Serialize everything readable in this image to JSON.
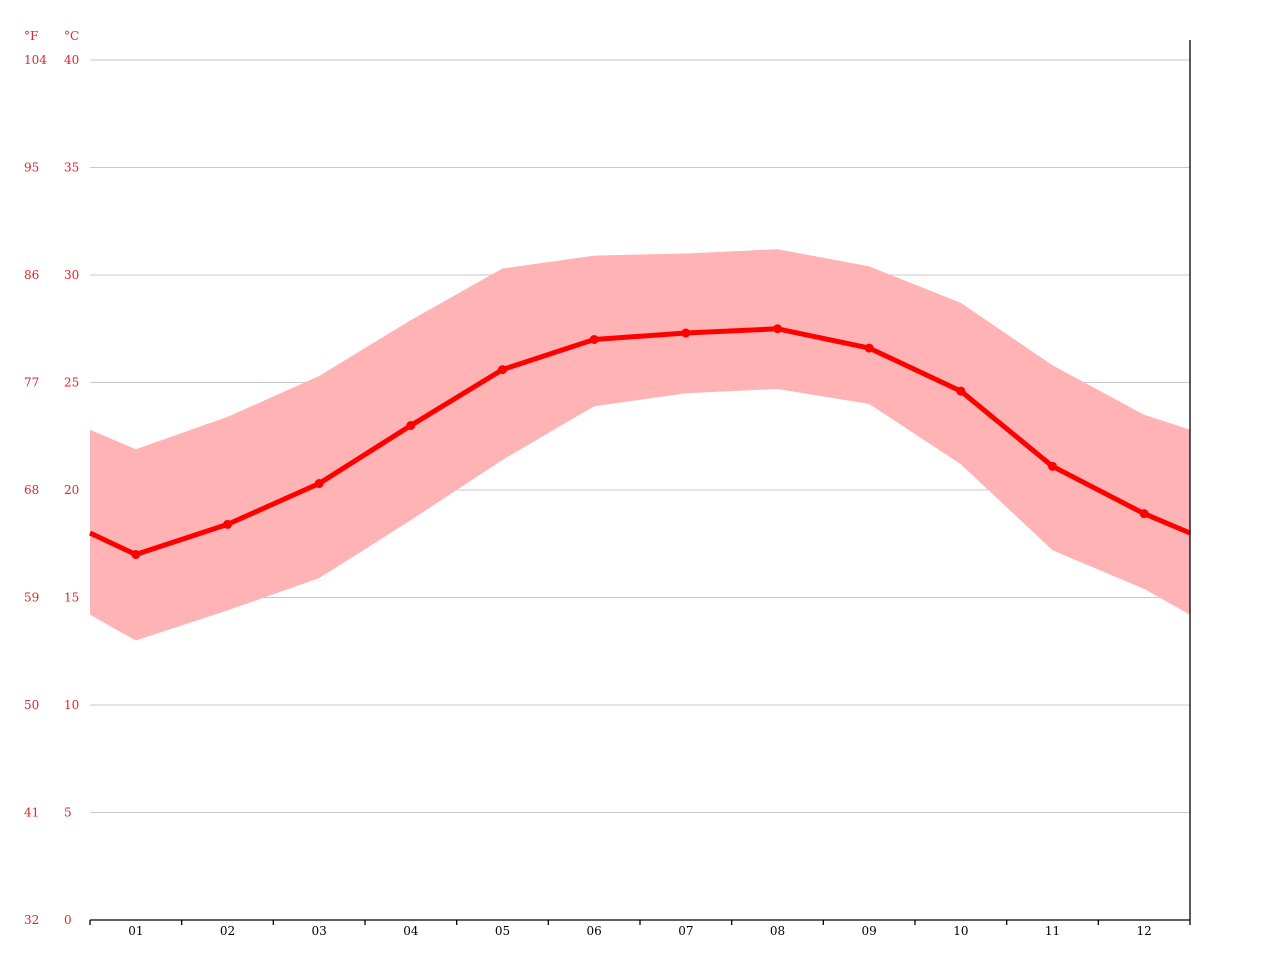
{
  "chart_data": {
    "type": "line",
    "title": "",
    "xlabel": "",
    "ylabel": "",
    "y_unit_left": "°F",
    "y_unit_right": "°C",
    "ylim": [
      0,
      40
    ],
    "grid": true,
    "categories": [
      "01",
      "02",
      "03",
      "04",
      "05",
      "06",
      "07",
      "08",
      "09",
      "10",
      "11",
      "12"
    ],
    "y_ticks_c": [
      "0",
      "5",
      "10",
      "15",
      "20",
      "25",
      "30",
      "35",
      "40"
    ],
    "y_ticks_f": [
      "32",
      "41",
      "50",
      "59",
      "68",
      "77",
      "86",
      "95",
      "104"
    ],
    "series": [
      {
        "values": [
          17.0,
          18.4,
          20.3,
          23.0,
          25.6,
          27.0,
          27.3,
          27.5,
          26.6,
          24.6,
          21.1,
          18.9
        ]
      }
    ],
    "band": {
      "upper": [
        21.9,
        23.4,
        25.3,
        27.9,
        30.3,
        30.9,
        31.0,
        31.2,
        30.4,
        28.7,
        25.8,
        23.5
      ],
      "lower": [
        13.0,
        14.4,
        15.9,
        18.6,
        21.4,
        23.9,
        24.5,
        24.7,
        24.0,
        21.2,
        17.2,
        15.4
      ]
    },
    "edge_values": {
      "mean": 18.0,
      "upper": 22.8,
      "lower": 14.2
    },
    "colors": {
      "line": "#ff0000",
      "band": "#ffb3b4",
      "tick_text": "#e8212a"
    }
  }
}
